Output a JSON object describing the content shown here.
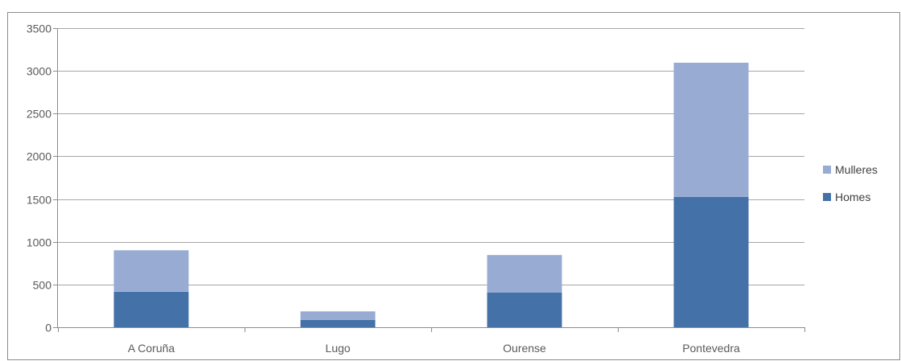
{
  "chart_data": {
    "type": "bar",
    "stacked": true,
    "categories": [
      "A Coruña",
      "Lugo",
      "Ourense",
      "Pontevedra"
    ],
    "series": [
      {
        "name": "Homes",
        "values": [
          415,
          85,
          405,
          1525
        ],
        "color": "#4472a8"
      },
      {
        "name": "Mulleres",
        "values": [
          485,
          100,
          440,
          1570
        ],
        "color": "#98abd3"
      }
    ],
    "ylim": [
      0,
      3500
    ],
    "yticks": [
      0,
      500,
      1000,
      1500,
      2000,
      2500,
      3000,
      3500
    ],
    "grid": true,
    "legend": {
      "position": "right",
      "items": [
        {
          "label": "Mulleres",
          "color": "#98abd3"
        },
        {
          "label": "Homes",
          "color": "#4472a8"
        }
      ]
    },
    "colors": {
      "gridline": "#a6a6a6",
      "axis": "#8c8c8c",
      "text": "#5a5a5a"
    }
  }
}
